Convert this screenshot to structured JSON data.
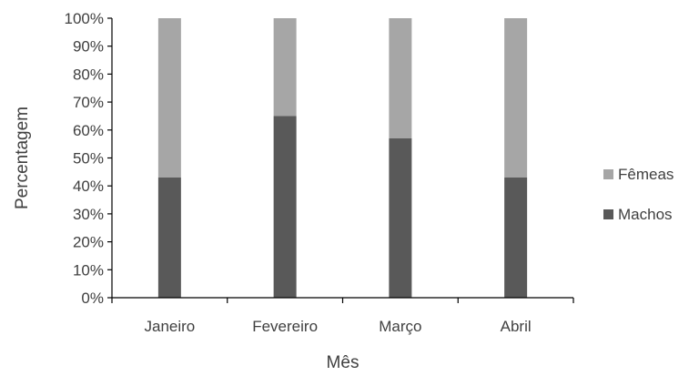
{
  "chart_data": {
    "type": "bar",
    "stacked": true,
    "normalized": true,
    "categories": [
      "Janeiro",
      "Fevereiro",
      "Março",
      "Abril"
    ],
    "series": [
      {
        "name": "Machos",
        "values": [
          43,
          65,
          57,
          43
        ],
        "color": "#595959"
      },
      {
        "name": "Fêmeas",
        "values": [
          57,
          35,
          43,
          57
        ],
        "color": "#a6a6a6"
      }
    ],
    "xlabel": "Mês",
    "ylabel": "Percentagem",
    "ylim": [
      0,
      100
    ],
    "yticks": [
      "0%",
      "10%",
      "20%",
      "30%",
      "40%",
      "50%",
      "60%",
      "70%",
      "80%",
      "90%",
      "100%"
    ],
    "grid": false,
    "legend_position": "right",
    "legend_order": [
      "Fêmeas",
      "Machos"
    ]
  }
}
